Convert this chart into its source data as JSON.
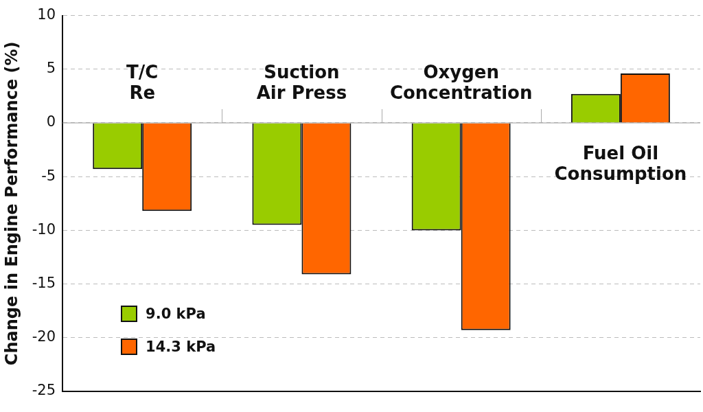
{
  "chart_data": {
    "type": "bar",
    "ylabel": "Change in Engine Performance (%)",
    "categories": [
      "T/C\nRe",
      "Suction\nAir Press",
      "Oxygen\nConcentration",
      "Fuel Oil\nConsumption"
    ],
    "series": [
      {
        "name": "9.0 kPa",
        "color": "#99cc00",
        "values": [
          -4.3,
          -9.5,
          -10,
          2.7
        ]
      },
      {
        "name": "14.3 kPa",
        "color": "#ff6600",
        "values": [
          -8.2,
          -14.1,
          -19.3,
          4.6
        ]
      }
    ],
    "ylim": [
      -25,
      10
    ],
    "yticks": [
      -25,
      -20,
      -15,
      -10,
      -5,
      0,
      5,
      10
    ],
    "grid": "y",
    "legend": "bottom left"
  }
}
